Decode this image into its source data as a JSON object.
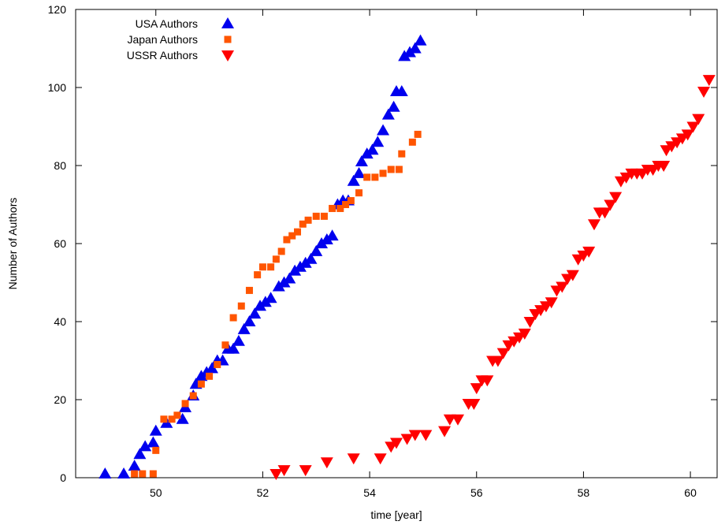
{
  "chart_data": {
    "type": "scatter",
    "title": "",
    "xlabel": "time [year]",
    "ylabel": "Number of Authors",
    "xlim": [
      48.5,
      60.5
    ],
    "ylim": [
      0,
      120
    ],
    "xticks": [
      50,
      52,
      54,
      56,
      58,
      60
    ],
    "yticks": [
      0,
      20,
      40,
      60,
      80,
      100,
      120
    ],
    "grid": false,
    "legend_position": "top-left",
    "series": [
      {
        "name": "USA Authors",
        "marker": "triangle-up",
        "color": "#0000ee",
        "points": [
          [
            49.05,
            1
          ],
          [
            49.4,
            1
          ],
          [
            49.6,
            3
          ],
          [
            49.7,
            6
          ],
          [
            49.8,
            8
          ],
          [
            49.95,
            9
          ],
          [
            50.0,
            12
          ],
          [
            50.2,
            14
          ],
          [
            50.5,
            15
          ],
          [
            50.55,
            18
          ],
          [
            50.7,
            21
          ],
          [
            50.75,
            24
          ],
          [
            50.85,
            26
          ],
          [
            50.95,
            27
          ],
          [
            51.05,
            28
          ],
          [
            51.15,
            30
          ],
          [
            51.25,
            30
          ],
          [
            51.35,
            33
          ],
          [
            51.45,
            33
          ],
          [
            51.55,
            35
          ],
          [
            51.65,
            38
          ],
          [
            51.75,
            40
          ],
          [
            51.85,
            42
          ],
          [
            51.95,
            44
          ],
          [
            52.05,
            45
          ],
          [
            52.15,
            46
          ],
          [
            52.3,
            49
          ],
          [
            52.4,
            50
          ],
          [
            52.5,
            51
          ],
          [
            52.6,
            53
          ],
          [
            52.7,
            54
          ],
          [
            52.8,
            55
          ],
          [
            52.9,
            56
          ],
          [
            53.0,
            58
          ],
          [
            53.1,
            60
          ],
          [
            53.2,
            61
          ],
          [
            53.3,
            62
          ],
          [
            53.4,
            70
          ],
          [
            53.5,
            71
          ],
          [
            53.6,
            71
          ],
          [
            53.7,
            76
          ],
          [
            53.8,
            78
          ],
          [
            53.85,
            81
          ],
          [
            53.95,
            83
          ],
          [
            54.05,
            84
          ],
          [
            54.15,
            86
          ],
          [
            54.25,
            89
          ],
          [
            54.35,
            93
          ],
          [
            54.45,
            95
          ],
          [
            54.5,
            99
          ],
          [
            54.6,
            99
          ],
          [
            54.65,
            108
          ],
          [
            54.75,
            109
          ],
          [
            54.85,
            110
          ],
          [
            54.95,
            112
          ]
        ]
      },
      {
        "name": "Japan Authors",
        "marker": "square",
        "color": "#ff5500",
        "points": [
          [
            49.6,
            1
          ],
          [
            49.75,
            1
          ],
          [
            49.95,
            1
          ],
          [
            50.0,
            7
          ],
          [
            50.15,
            15
          ],
          [
            50.3,
            15
          ],
          [
            50.4,
            16
          ],
          [
            50.55,
            19
          ],
          [
            50.7,
            21
          ],
          [
            50.85,
            24
          ],
          [
            51.0,
            26
          ],
          [
            51.15,
            29
          ],
          [
            51.3,
            34
          ],
          [
            51.45,
            41
          ],
          [
            51.6,
            44
          ],
          [
            51.75,
            48
          ],
          [
            51.9,
            52
          ],
          [
            52.0,
            54
          ],
          [
            52.15,
            54
          ],
          [
            52.25,
            56
          ],
          [
            52.35,
            58
          ],
          [
            52.45,
            61
          ],
          [
            52.55,
            62
          ],
          [
            52.65,
            63
          ],
          [
            52.75,
            65
          ],
          [
            52.85,
            66
          ],
          [
            53.0,
            67
          ],
          [
            53.15,
            67
          ],
          [
            53.3,
            69
          ],
          [
            53.45,
            69
          ],
          [
            53.55,
            70
          ],
          [
            53.65,
            71
          ],
          [
            53.8,
            73
          ],
          [
            53.95,
            77
          ],
          [
            54.1,
            77
          ],
          [
            54.25,
            78
          ],
          [
            54.4,
            79
          ],
          [
            54.55,
            79
          ],
          [
            54.6,
            83
          ],
          [
            54.8,
            86
          ],
          [
            54.9,
            88
          ]
        ]
      },
      {
        "name": "USSR Authors",
        "marker": "triangle-down",
        "color": "#ff0000",
        "points": [
          [
            52.25,
            1
          ],
          [
            52.4,
            2
          ],
          [
            52.8,
            2
          ],
          [
            53.2,
            4
          ],
          [
            53.7,
            5
          ],
          [
            54.2,
            5
          ],
          [
            54.4,
            8
          ],
          [
            54.5,
            9
          ],
          [
            54.7,
            10
          ],
          [
            54.85,
            11
          ],
          [
            55.05,
            11
          ],
          [
            55.4,
            12
          ],
          [
            55.5,
            15
          ],
          [
            55.65,
            15
          ],
          [
            55.85,
            19
          ],
          [
            55.95,
            19
          ],
          [
            56.0,
            23
          ],
          [
            56.1,
            25
          ],
          [
            56.2,
            25
          ],
          [
            56.3,
            30
          ],
          [
            56.4,
            30
          ],
          [
            56.5,
            32
          ],
          [
            56.6,
            34
          ],
          [
            56.7,
            35
          ],
          [
            56.8,
            36
          ],
          [
            56.9,
            37
          ],
          [
            57.0,
            40
          ],
          [
            57.1,
            42
          ],
          [
            57.2,
            43
          ],
          [
            57.3,
            44
          ],
          [
            57.4,
            45
          ],
          [
            57.5,
            48
          ],
          [
            57.6,
            49
          ],
          [
            57.7,
            51
          ],
          [
            57.8,
            52
          ],
          [
            57.9,
            56
          ],
          [
            58.0,
            57
          ],
          [
            58.1,
            58
          ],
          [
            58.2,
            65
          ],
          [
            58.3,
            68
          ],
          [
            58.4,
            68
          ],
          [
            58.5,
            70
          ],
          [
            58.6,
            72
          ],
          [
            58.7,
            76
          ],
          [
            58.8,
            77
          ],
          [
            58.9,
            78
          ],
          [
            59.0,
            78
          ],
          [
            59.1,
            78
          ],
          [
            59.2,
            79
          ],
          [
            59.3,
            79
          ],
          [
            59.4,
            80
          ],
          [
            59.5,
            80
          ],
          [
            59.55,
            84
          ],
          [
            59.65,
            85
          ],
          [
            59.75,
            86
          ],
          [
            59.85,
            87
          ],
          [
            59.95,
            88
          ],
          [
            60.05,
            90
          ],
          [
            60.15,
            92
          ],
          [
            60.25,
            99
          ],
          [
            60.35,
            102
          ]
        ]
      }
    ]
  }
}
